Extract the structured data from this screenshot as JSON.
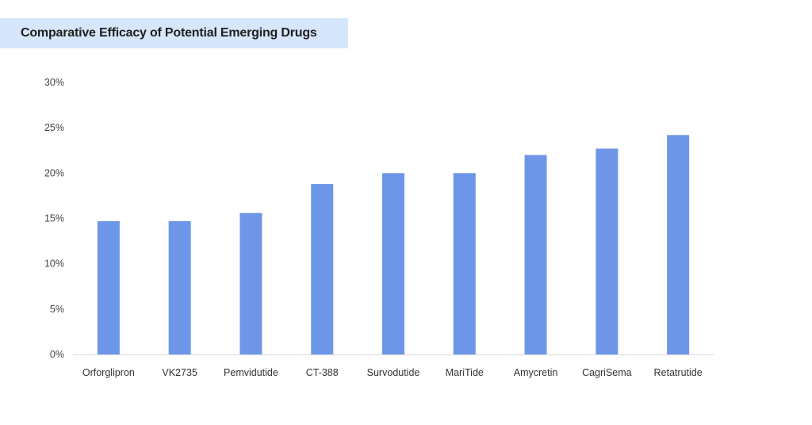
{
  "header": {
    "title": "Comparative Efficacy of Potential Emerging Drugs"
  },
  "chart_data": {
    "type": "bar",
    "title": "Comparative Efficacy of Potential Emerging Drugs",
    "xlabel": "",
    "ylabel": "",
    "categories": [
      "Orforglipron",
      "VK2735",
      "Pemvidutide",
      "CT-388",
      "Survodutide",
      "MariTide",
      "Amycretin",
      "CagriSema",
      "Retatrutide"
    ],
    "values": [
      14.7,
      14.7,
      15.6,
      18.8,
      20.0,
      20.0,
      22.0,
      22.7,
      24.2
    ],
    "value_unit": "%",
    "ylim": [
      0,
      30
    ],
    "yticks": [
      0,
      5,
      10,
      15,
      20,
      25,
      30
    ],
    "ytick_labels": [
      "0%",
      "5%",
      "10%",
      "15%",
      "20%",
      "25%",
      "30%"
    ],
    "bar_color": "#6d96e8",
    "axis_color": "#d9d9d9",
    "grid": false,
    "legend": "none"
  }
}
